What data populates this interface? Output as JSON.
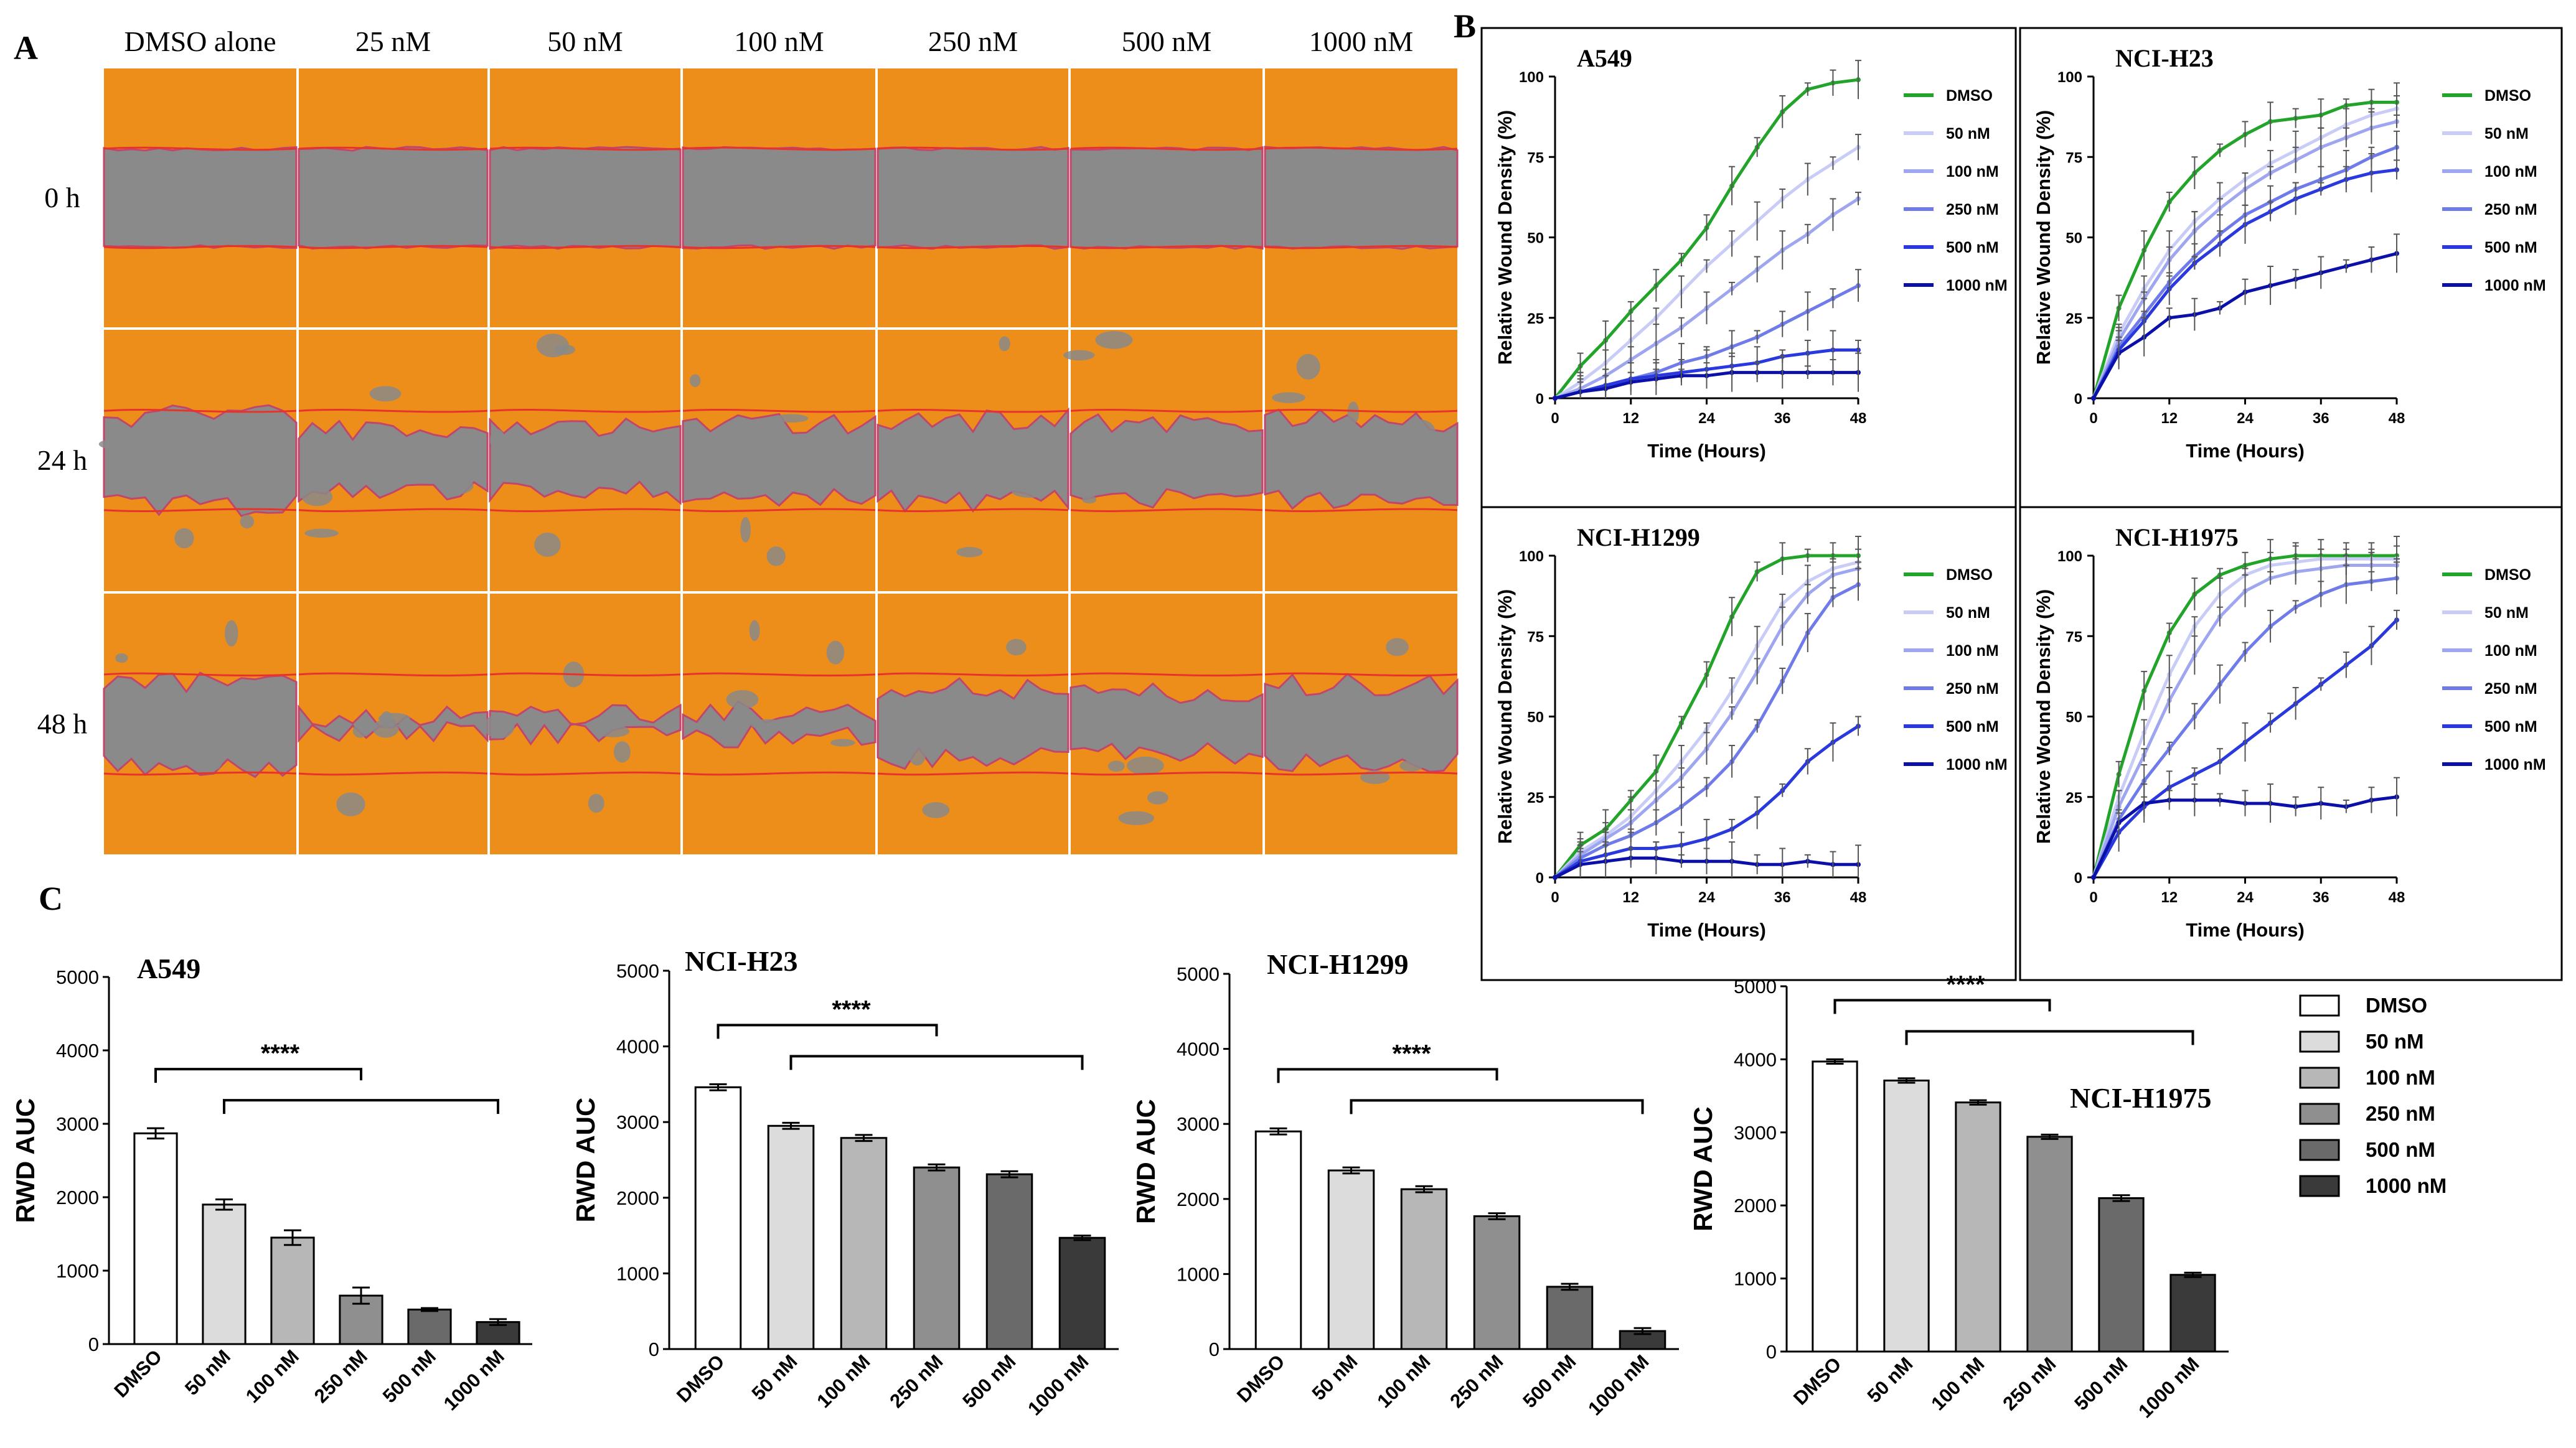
{
  "panel_a": {
    "label": "A",
    "conditions": [
      "DMSO alone",
      "25 nM",
      "50 nM",
      "100 nM",
      "250 nM",
      "500 nM",
      "1000 nM"
    ],
    "timepoints": [
      "0 h",
      "24 h",
      "48 h"
    ],
    "colors": {
      "cells": "#ee8e1a",
      "wound": "#8a8a8a",
      "edge": "#e8332c"
    },
    "wound_open_fraction": [
      [
        1,
        1,
        1,
        1,
        1,
        1,
        1
      ],
      [
        0.9,
        0.6,
        0.65,
        0.75,
        0.8,
        0.75,
        0.8
      ],
      [
        0.85,
        0.15,
        0.2,
        0.25,
        0.7,
        0.6,
        0.8
      ]
    ]
  },
  "panel_b_label": "B",
  "panel_c_label": "C",
  "chart_data": [
    {
      "type": "line",
      "panel": "B",
      "title": "A549",
      "xlabel": "Time (Hours)",
      "ylabel": "Relative Wound Density (%)",
      "xlim": [
        0,
        48
      ],
      "ylim": [
        0,
        100
      ],
      "xticks": [
        "0",
        "12",
        "24",
        "36",
        "48"
      ],
      "yticks": [
        "0",
        "25",
        "50",
        "75",
        "100"
      ],
      "x": [
        0,
        4,
        8,
        12,
        16,
        20,
        24,
        28,
        32,
        36,
        40,
        44,
        48
      ],
      "series": [
        {
          "name": "DMSO",
          "color": "#22a32a",
          "values": [
            0,
            10,
            18,
            27,
            35,
            43,
            53,
            66,
            78,
            89,
            96,
            98,
            99
          ]
        },
        {
          "name": "50 nM",
          "color": "#c9ccf6",
          "values": [
            0,
            5,
            11,
            18,
            25,
            33,
            41,
            48,
            55,
            62,
            68,
            73,
            78
          ]
        },
        {
          "name": "100 nM",
          "color": "#9fa6f0",
          "values": [
            0,
            3,
            7,
            12,
            17,
            22,
            28,
            34,
            40,
            46,
            51,
            57,
            62
          ]
        },
        {
          "name": "250 nM",
          "color": "#6f7be8",
          "values": [
            0,
            2,
            4,
            6,
            8,
            11,
            13,
            16,
            19,
            23,
            27,
            31,
            35
          ]
        },
        {
          "name": "500 nM",
          "color": "#2a39de",
          "values": [
            0,
            2,
            4,
            6,
            7,
            8,
            9,
            10,
            11,
            13,
            14,
            15,
            15
          ]
        },
        {
          "name": "1000 nM",
          "color": "#0a10a8",
          "values": [
            0,
            2,
            3,
            5,
            6,
            7,
            7,
            8,
            8,
            8,
            8,
            8,
            8
          ]
        }
      ]
    },
    {
      "type": "line",
      "panel": "B",
      "title": "NCI-H23",
      "xlabel": "Time (Hours)",
      "ylabel": "Relative Wound Density (%)",
      "xlim": [
        0,
        48
      ],
      "ylim": [
        0,
        100
      ],
      "xticks": [
        "0",
        "12",
        "24",
        "36",
        "48"
      ],
      "yticks": [
        "0",
        "25",
        "50",
        "75",
        "100"
      ],
      "x": [
        0,
        4,
        8,
        12,
        16,
        20,
        24,
        28,
        32,
        36,
        40,
        44,
        48
      ],
      "series": [
        {
          "name": "DMSO",
          "color": "#22a32a",
          "values": [
            0,
            28,
            46,
            61,
            70,
            77,
            82,
            86,
            87,
            88,
            91,
            92,
            92
          ]
        },
        {
          "name": "50 nM",
          "color": "#c9ccf6",
          "values": [
            0,
            20,
            34,
            46,
            55,
            62,
            68,
            73,
            77,
            81,
            85,
            88,
            90
          ]
        },
        {
          "name": "100 nM",
          "color": "#9fa6f0",
          "values": [
            0,
            18,
            31,
            43,
            52,
            59,
            65,
            70,
            74,
            78,
            81,
            84,
            86
          ]
        },
        {
          "name": "250 nM",
          "color": "#6f7be8",
          "values": [
            0,
            16,
            26,
            36,
            44,
            51,
            57,
            61,
            65,
            68,
            71,
            75,
            78
          ]
        },
        {
          "name": "500 nM",
          "color": "#2a39de",
          "values": [
            0,
            15,
            24,
            34,
            42,
            48,
            54,
            58,
            62,
            65,
            68,
            70,
            71
          ]
        },
        {
          "name": "1000 nM",
          "color": "#0a10a8",
          "values": [
            0,
            14,
            19,
            25,
            26,
            28,
            33,
            35,
            37,
            39,
            41,
            43,
            45
          ]
        }
      ]
    },
    {
      "type": "line",
      "panel": "B",
      "title": "NCI-H1299",
      "xlabel": "Time (Hours)",
      "ylabel": "Relative Wound Density (%)",
      "xlim": [
        0,
        48
      ],
      "ylim": [
        0,
        100
      ],
      "xticks": [
        "0",
        "12",
        "24",
        "36",
        "48"
      ],
      "yticks": [
        "0",
        "25",
        "50",
        "75",
        "100"
      ],
      "x": [
        0,
        4,
        8,
        12,
        16,
        20,
        24,
        28,
        32,
        36,
        40,
        44,
        48
      ],
      "series": [
        {
          "name": "DMSO",
          "color": "#22a32a",
          "values": [
            0,
            10,
            15,
            24,
            33,
            48,
            63,
            81,
            95,
            99,
            100,
            100,
            100
          ]
        },
        {
          "name": "50 nM",
          "color": "#c9ccf6",
          "values": [
            0,
            8,
            13,
            19,
            27,
            36,
            46,
            58,
            72,
            85,
            92,
            96,
            98
          ]
        },
        {
          "name": "100 nM",
          "color": "#9fa6f0",
          "values": [
            0,
            7,
            12,
            17,
            24,
            31,
            40,
            51,
            64,
            78,
            88,
            94,
            96
          ]
        },
        {
          "name": "250 nM",
          "color": "#6f7be8",
          "values": [
            0,
            6,
            10,
            13,
            17,
            22,
            28,
            36,
            47,
            61,
            76,
            87,
            91
          ]
        },
        {
          "name": "500 nM",
          "color": "#2a39de",
          "values": [
            0,
            5,
            7,
            9,
            9,
            10,
            12,
            15,
            20,
            27,
            36,
            42,
            47
          ]
        },
        {
          "name": "1000 nM",
          "color": "#0a10a8",
          "values": [
            0,
            4,
            5,
            6,
            6,
            5,
            5,
            5,
            4,
            4,
            5,
            4,
            4
          ]
        }
      ]
    },
    {
      "type": "line",
      "panel": "B",
      "title": "NCI-H1975",
      "xlabel": "Time (Hours)",
      "ylabel": "Relative Wound Density (%)",
      "xlim": [
        0,
        48
      ],
      "ylim": [
        0,
        100
      ],
      "xticks": [
        "0",
        "12",
        "24",
        "36",
        "48"
      ],
      "yticks": [
        "0",
        "25",
        "50",
        "75",
        "100"
      ],
      "x": [
        0,
        4,
        8,
        12,
        16,
        20,
        24,
        28,
        32,
        36,
        40,
        44,
        48
      ],
      "series": [
        {
          "name": "DMSO",
          "color": "#22a32a",
          "values": [
            0,
            32,
            58,
            76,
            88,
            94,
            97,
            99,
            100,
            100,
            100,
            100,
            100
          ]
        },
        {
          "name": "50 nM",
          "color": "#c9ccf6",
          "values": [
            0,
            25,
            45,
            63,
            78,
            88,
            94,
            97,
            98,
            99,
            99,
            99,
            99
          ]
        },
        {
          "name": "100 nM",
          "color": "#9fa6f0",
          "values": [
            0,
            22,
            38,
            55,
            69,
            81,
            89,
            93,
            95,
            96,
            97,
            97,
            97
          ]
        },
        {
          "name": "250 nM",
          "color": "#6f7be8",
          "values": [
            0,
            18,
            30,
            40,
            50,
            60,
            70,
            78,
            84,
            88,
            91,
            92,
            93
          ]
        },
        {
          "name": "500 nM",
          "color": "#2a39de",
          "values": [
            0,
            14,
            22,
            28,
            32,
            36,
            42,
            48,
            54,
            60,
            66,
            72,
            80
          ]
        },
        {
          "name": "1000 nM",
          "color": "#0a10a8",
          "values": [
            0,
            17,
            23,
            24,
            24,
            24,
            23,
            23,
            22,
            23,
            22,
            24,
            25
          ]
        }
      ]
    },
    {
      "type": "bar",
      "panel": "C",
      "title": "A549",
      "ylabel": "RWD AUC",
      "categories": [
        "DMSO",
        "50 nM",
        "100 nM",
        "250 nM",
        "500 nM",
        "1000 nM"
      ],
      "values": [
        2870,
        1900,
        1450,
        660,
        470,
        300
      ],
      "errors": [
        70,
        70,
        100,
        110,
        20,
        40
      ],
      "ylim": [
        0,
        5000
      ],
      "yticks": [
        "0",
        "1000",
        "2000",
        "3000",
        "4000",
        "5000"
      ],
      "significance": "****",
      "colors": [
        "#ffffff",
        "#dcdcdc",
        "#b7b7b7",
        "#8f8f8f",
        "#6a6a6a",
        "#3a3a3a"
      ]
    },
    {
      "type": "bar",
      "panel": "C",
      "title": "NCI-H23",
      "ylabel": "RWD AUC",
      "categories": [
        "DMSO",
        "50 nM",
        "100 nM",
        "250 nM",
        "500 nM",
        "1000 nM"
      ],
      "values": [
        3460,
        2950,
        2790,
        2400,
        2310,
        1470
      ],
      "errors": [
        40,
        40,
        40,
        40,
        40,
        30
      ],
      "ylim": [
        0,
        5000
      ],
      "yticks": [
        "0",
        "1000",
        "2000",
        "3000",
        "4000",
        "5000"
      ],
      "significance": "****",
      "colors": [
        "#ffffff",
        "#dcdcdc",
        "#b7b7b7",
        "#8f8f8f",
        "#6a6a6a",
        "#3a3a3a"
      ]
    },
    {
      "type": "bar",
      "panel": "C",
      "title": "NCI-H1299",
      "ylabel": "RWD AUC",
      "categories": [
        "DMSO",
        "50 nM",
        "100 nM",
        "250 nM",
        "500 nM",
        "1000 nM"
      ],
      "values": [
        2900,
        2380,
        2130,
        1770,
        830,
        240
      ],
      "errors": [
        40,
        40,
        40,
        40,
        40,
        40
      ],
      "ylim": [
        0,
        5000
      ],
      "yticks": [
        "0",
        "1000",
        "2000",
        "3000",
        "4000",
        "5000"
      ],
      "significance": "****",
      "colors": [
        "#ffffff",
        "#dcdcdc",
        "#b7b7b7",
        "#8f8f8f",
        "#6a6a6a",
        "#3a3a3a"
      ]
    },
    {
      "type": "bar",
      "panel": "C",
      "title": "NCI-H1975",
      "ylabel": "RWD AUC",
      "categories": [
        "DMSO",
        "50 nM",
        "100 nM",
        "250 nM",
        "500 nM",
        "1000 nM"
      ],
      "values": [
        3970,
        3710,
        3410,
        2940,
        2100,
        1050
      ],
      "errors": [
        30,
        30,
        30,
        30,
        40,
        30
      ],
      "ylim": [
        0,
        5000
      ],
      "yticks": [
        "0",
        "1000",
        "2000",
        "3000",
        "4000",
        "5000"
      ],
      "significance": "****",
      "colors": [
        "#ffffff",
        "#dcdcdc",
        "#b7b7b7",
        "#8f8f8f",
        "#6a6a6a",
        "#3a3a3a"
      ]
    }
  ],
  "bar_legend": {
    "labels": [
      "DMSO",
      "50 nM",
      "100 nM",
      "250 nM",
      "500 nM",
      "1000 nM"
    ],
    "colors": [
      "#ffffff",
      "#dcdcdc",
      "#b7b7b7",
      "#8f8f8f",
      "#6a6a6a",
      "#3a3a3a"
    ]
  }
}
